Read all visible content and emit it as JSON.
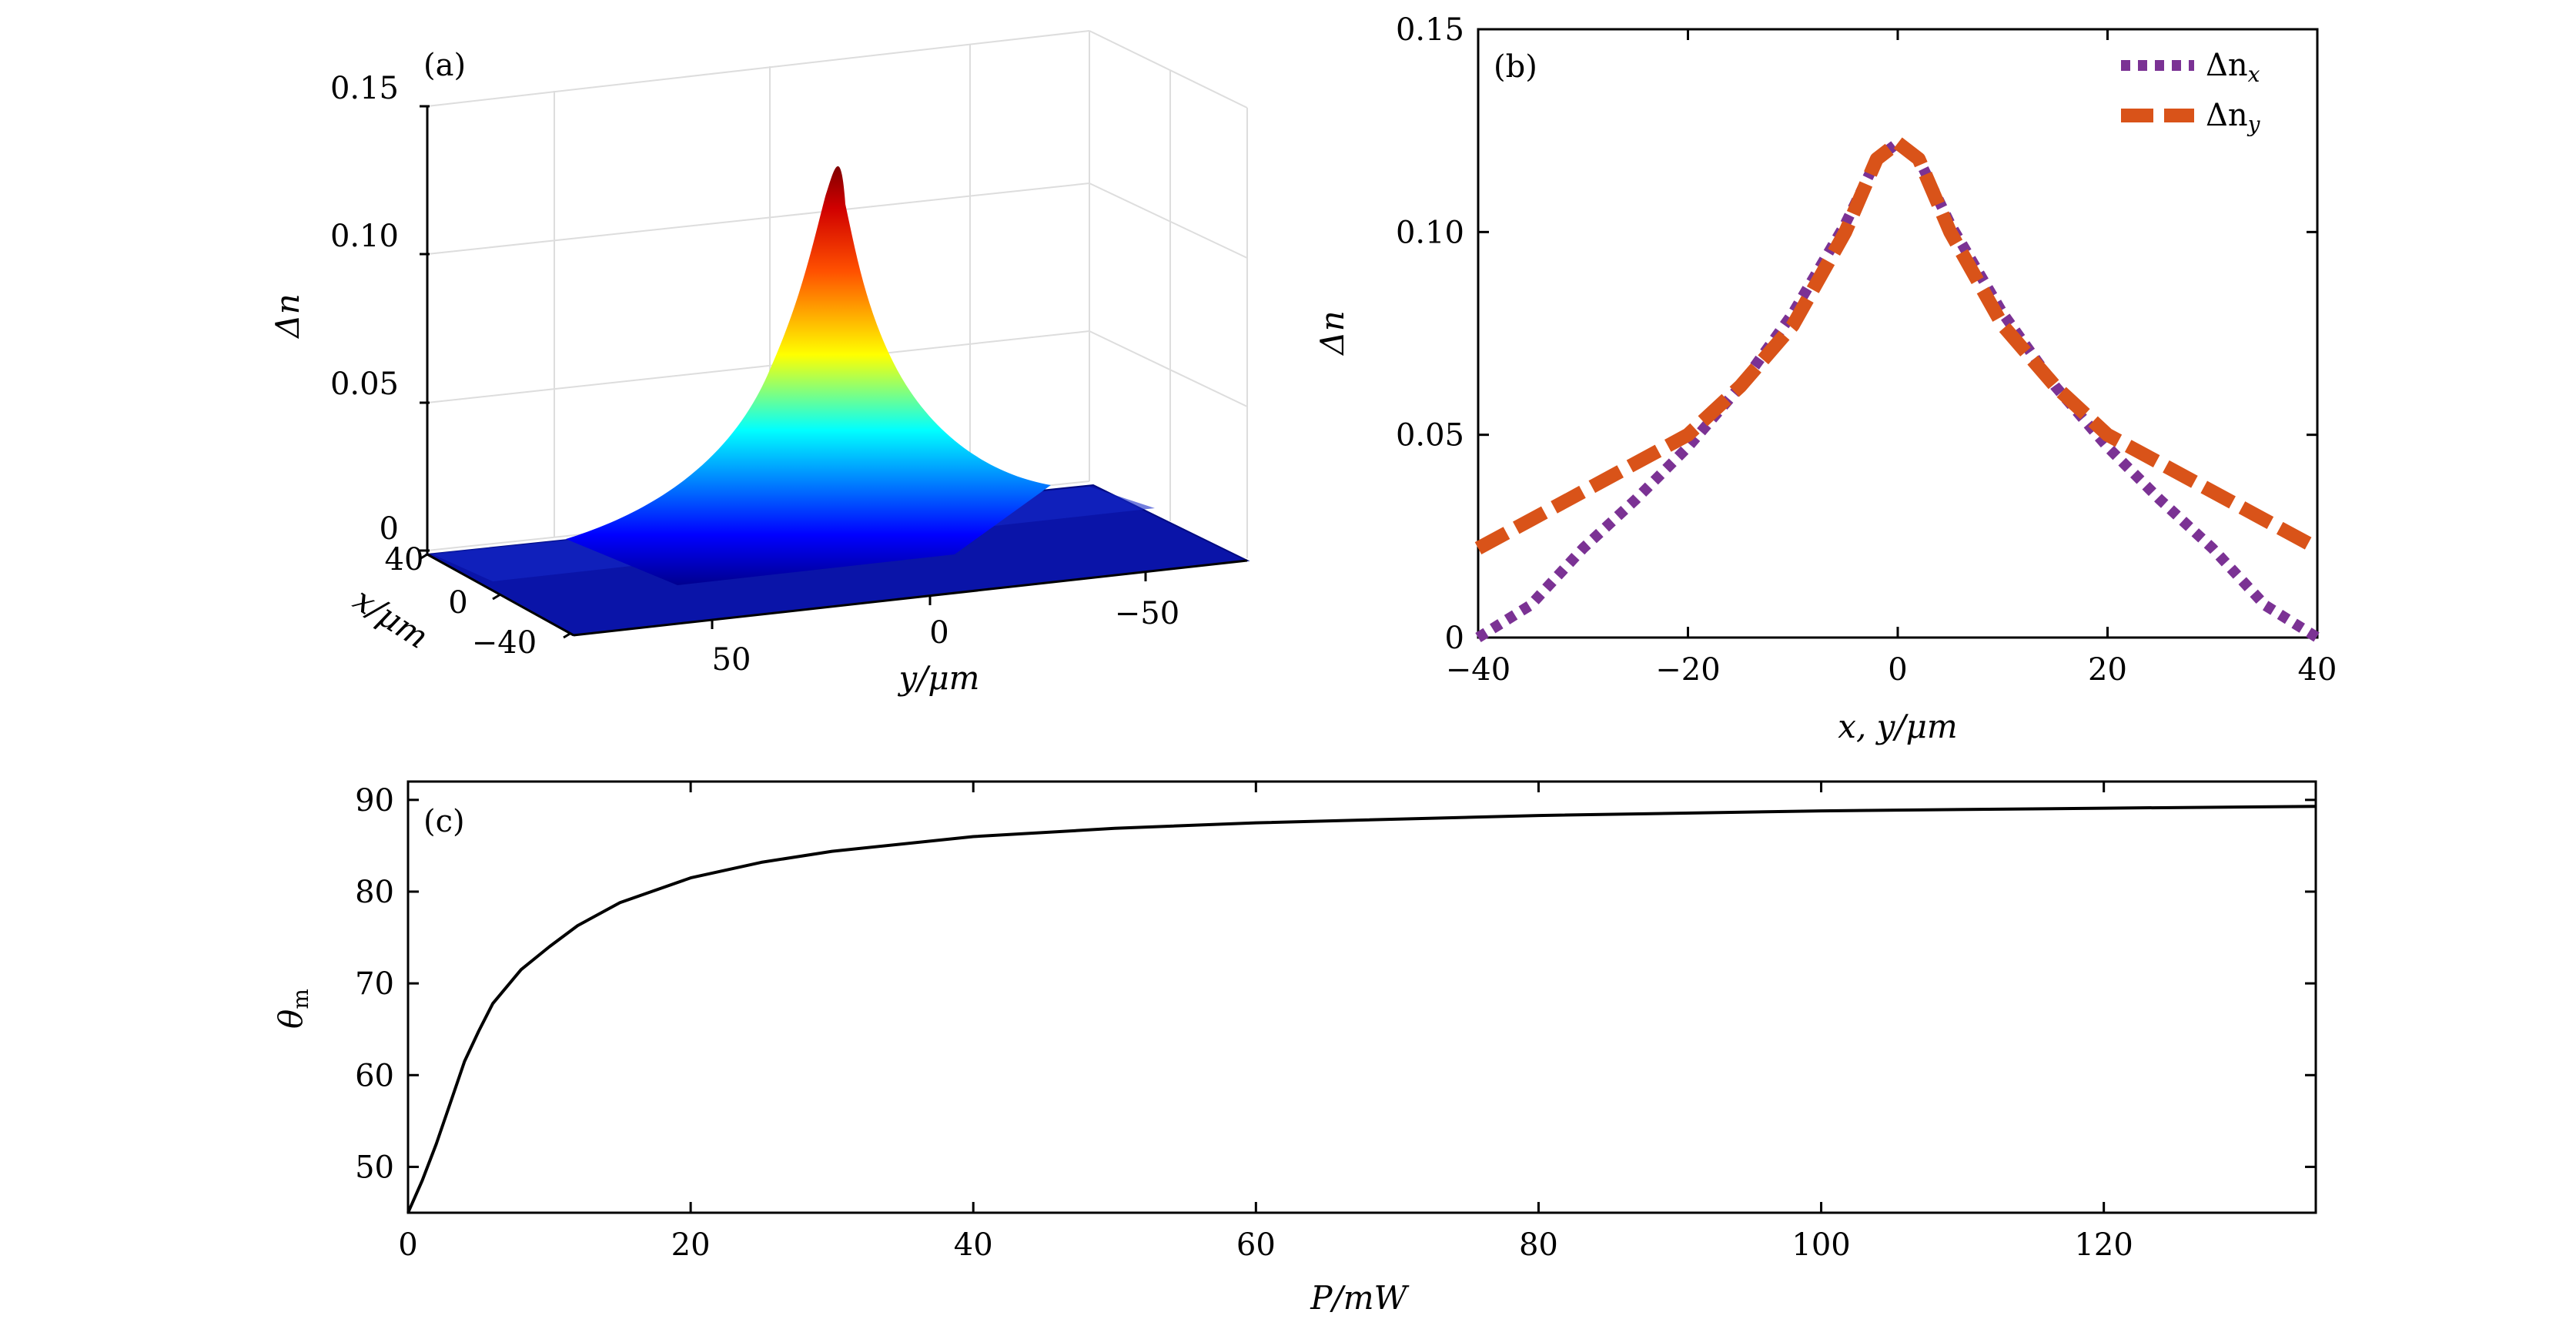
{
  "figure_title": "",
  "chart_data": [
    {
      "panel": "(a)",
      "type": "surface3d",
      "zlabel": "Δn",
      "xlabel": "x/μm",
      "ylabel": "y/μm",
      "zlim": [
        0,
        0.15
      ],
      "z_ticks": [
        "0",
        "0.05",
        "0.10",
        "0.15"
      ],
      "x_ticks": [
        "40",
        "0",
        "−40"
      ],
      "y_ticks": [
        "50",
        "0",
        "−50"
      ],
      "peak_value": 0.122,
      "colormap": "jet"
    },
    {
      "panel": "(b)",
      "type": "line",
      "xlabel": "x, y/μm",
      "ylabel": "Δn",
      "xlim": [
        -40,
        40
      ],
      "ylim": [
        0,
        0.15
      ],
      "x_ticks": [
        "−40",
        "−20",
        "0",
        "20",
        "40"
      ],
      "y_ticks": [
        "0",
        "0.05",
        "0.10",
        "0.15"
      ],
      "legend_position": "top-right",
      "series": [
        {
          "name": "Δn_x",
          "legend_base": "Δn",
          "legend_sub": "x",
          "color": "#7B3294",
          "style": "dotted",
          "x": [
            -40,
            -35,
            -30,
            -25,
            -20,
            -15,
            -10,
            -5,
            -2,
            0,
            2,
            5,
            10,
            15,
            20,
            25,
            30,
            35,
            40
          ],
          "values": [
            0.0,
            0.008,
            0.022,
            0.034,
            0.047,
            0.062,
            0.08,
            0.102,
            0.118,
            0.122,
            0.118,
            0.102,
            0.08,
            0.062,
            0.047,
            0.034,
            0.022,
            0.008,
            0.0
          ]
        },
        {
          "name": "Δn_y",
          "legend_base": "Δn",
          "legend_sub": "y",
          "color": "#D95319",
          "style": "dashed",
          "x": [
            -40,
            -35,
            -30,
            -25,
            -20,
            -15,
            -10,
            -5,
            -2,
            0,
            2,
            5,
            10,
            15,
            20,
            25,
            30,
            35,
            40
          ],
          "values": [
            0.022,
            0.029,
            0.036,
            0.043,
            0.05,
            0.062,
            0.077,
            0.1,
            0.118,
            0.122,
            0.118,
            0.1,
            0.077,
            0.062,
            0.05,
            0.043,
            0.036,
            0.029,
            0.022
          ]
        }
      ]
    },
    {
      "panel": "(c)",
      "type": "line",
      "xlabel": "P/mW",
      "ylabel": "θm",
      "ylabel_base": "θ",
      "ylabel_sub": "m",
      "xlim": [
        0,
        135
      ],
      "ylim": [
        45,
        92
      ],
      "x_ticks": [
        "0",
        "20",
        "40",
        "60",
        "80",
        "100",
        "120"
      ],
      "y_ticks": [
        "50",
        "60",
        "70",
        "80",
        "90"
      ],
      "series": [
        {
          "name": "θm",
          "color": "#000000",
          "x": [
            0,
            1,
            2,
            3,
            4,
            5,
            6,
            8,
            10,
            12,
            15,
            20,
            25,
            30,
            40,
            50,
            60,
            80,
            100,
            120,
            135
          ],
          "values": [
            45.0,
            48.5,
            52.5,
            57.0,
            61.5,
            64.8,
            67.8,
            71.5,
            74.0,
            76.3,
            78.8,
            81.5,
            83.2,
            84.4,
            86.0,
            86.9,
            87.5,
            88.3,
            88.8,
            89.1,
            89.3
          ]
        }
      ]
    }
  ]
}
